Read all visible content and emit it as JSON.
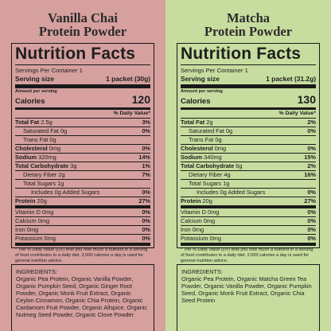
{
  "colors": {
    "left_background": "#d5a09e",
    "right_background": "#c7dd9f",
    "text": "#1e1e1e"
  },
  "products": [
    {
      "title_lines": [
        "Vanilla Chai",
        "Protein Powder"
      ],
      "heading": "Nutrition Facts",
      "servings_per_container": "Servings Per Container 1",
      "serving_size_label": "Serving size",
      "serving_size_value": "1 packet (30g)",
      "amount_per_serving": "Amount per serving",
      "calories_label": "Calories",
      "calories_value": "120",
      "dv_header": "% Daily Value*",
      "nutrients": [
        {
          "bold": "Total Fat",
          "name": " 2.5g",
          "dv": "3%"
        },
        {
          "bold": "",
          "name": "Saturated Fat 0g",
          "dv": "0%"
        },
        {
          "bold": "",
          "name": "Trans Fat 0g",
          "dv": ""
        },
        {
          "bold": "Cholesterol",
          "name": " 0mg",
          "dv": "0%"
        },
        {
          "bold": "Sodium",
          "name": " 320mg",
          "dv": "14%"
        },
        {
          "bold": "Total Carbohydrate",
          "name": " 3g",
          "dv": "1%"
        },
        {
          "bold": "",
          "name": "Dietary Fiber 2g",
          "dv": "7%"
        },
        {
          "bold": "",
          "name": "Total Sugars 1g",
          "dv": ""
        },
        {
          "bold": "",
          "name": "Includes 0g Added Sugars",
          "dv": "0%"
        },
        {
          "bold": "Protein",
          "name": " 20g",
          "dv": "27%"
        },
        {
          "bold": "",
          "name": "Vitamin D 0mg",
          "dv": "0%"
        },
        {
          "bold": "",
          "name": "Calcium 0mg",
          "dv": "0%"
        },
        {
          "bold": "",
          "name": "Iron 0mg",
          "dv": "0%"
        },
        {
          "bold": "",
          "name": "Potassium 0mg",
          "dv": "0%"
        }
      ],
      "footnote": "* The % Daily Value (DV) tells you how much a nutrient in a serving of food contributes to a daily diet. 2,000 calories a day is used for general nutrition advice.",
      "ingredients_label": "INGREDIENTS:",
      "ingredients_text": "Organic Pea Protein, Organic Vanilla Powder, Organic Pumpkin Seed, Organic Ginger Root Powder, Organic Monk Fruit Extract, Organic Ceylon Cinnamon, Organic Chia Protein, Organic Cardamom Fruit Powder, Organic Allspice, Organic Nutmeg Seed Powder, Organic Clove Powder"
    },
    {
      "title_lines": [
        "Matcha",
        "Protein Powder"
      ],
      "heading": "Nutrition Facts",
      "servings_per_container": "Servings Per Container 1",
      "serving_size_label": "Serving size",
      "serving_size_value": "1 packet (31.2g)",
      "amount_per_serving": "Amount per serving",
      "calories_label": "Calories",
      "calories_value": "130",
      "dv_header": "% Daily Value*",
      "nutrients": [
        {
          "bold": "Total Fat",
          "name": " 2g",
          "dv": "2%"
        },
        {
          "bold": "",
          "name": "Saturated Fat 0g",
          "dv": "0%"
        },
        {
          "bold": "",
          "name": "Trans Fat 0g",
          "dv": ""
        },
        {
          "bold": "Cholesterol",
          "name": " 0mg",
          "dv": "0%"
        },
        {
          "bold": "Sodium",
          "name": " 340mg",
          "dv": "15%"
        },
        {
          "bold": "Total Carbohydrate",
          "name": " 6g",
          "dv": "2%"
        },
        {
          "bold": "",
          "name": "Dietary Fiber 4g",
          "dv": "16%"
        },
        {
          "bold": "",
          "name": "Total Sugars 1g",
          "dv": ""
        },
        {
          "bold": "",
          "name": "Includes 0g Added Sugars",
          "dv": "0%"
        },
        {
          "bold": "Protein",
          "name": " 20g",
          "dv": "27%"
        },
        {
          "bold": "",
          "name": "Vitamin D 0mg",
          "dv": "0%"
        },
        {
          "bold": "",
          "name": "Calcium 0mg",
          "dv": "0%"
        },
        {
          "bold": "",
          "name": "Iron 0mg",
          "dv": "0%"
        },
        {
          "bold": "",
          "name": "Potassium 0mg",
          "dv": "0%"
        }
      ],
      "footnote": "* The % Daily Value (DV) tells you how much a nutrient in a serving of food contributes to a daily diet. 2,000 calories a day is used for general nutrition advice.",
      "ingredients_label": "INGREDIENTS:",
      "ingredients_text": "Organic Pea Protein, Organic Matcha Green Tea Powder, Organic Vanilla Powder, Organic Pumpkin Seed, Organic Monk Fruit Extract, Organic Chia Seed Protein"
    }
  ]
}
